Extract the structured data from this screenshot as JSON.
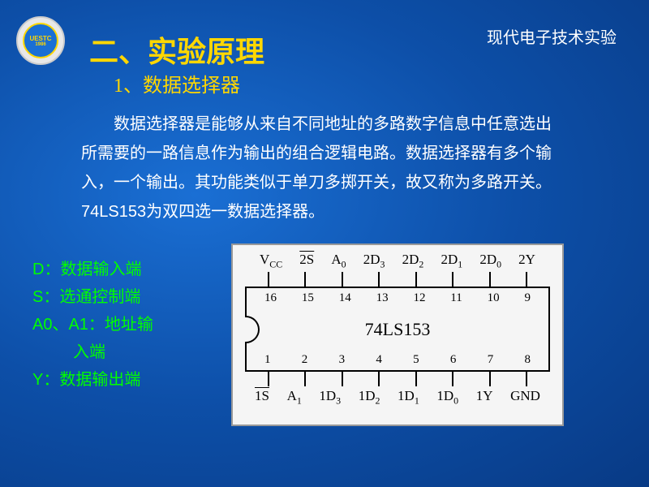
{
  "header": {
    "right_text": "现代电子技术实验",
    "logo_text": "UESTC",
    "logo_year": "1986"
  },
  "title": "二、实验原理",
  "subtitle": "1、数据选择器",
  "body_text": "数据选择器是能够从来自不同地址的多路数字信息中任意选出所需要的一路信息作为输出的组合逻辑电路。数据选择器有多个输入，一个输出。其功能类似于单刀多掷开关，故又称为多路开关。74LS153为双四选一数据选择器。",
  "pin_legend": {
    "d": "D：数据输入端",
    "s": "S：选通控制端",
    "a": "A0、A1：地址输",
    "a_cont": "入端",
    "y": "Y：数据输出端"
  },
  "chip": {
    "name": "74LS153",
    "top_pins": [
      16,
      15,
      14,
      13,
      12,
      11,
      10,
      9
    ],
    "bottom_pins": [
      1,
      2,
      3,
      4,
      5,
      6,
      7,
      8
    ],
    "top_labels_raw": [
      "Vcc",
      "2S",
      "A0",
      "2D3",
      "2D2",
      "2D1",
      "2D0",
      "2Y"
    ],
    "bottom_labels_raw": [
      "1S",
      "A1",
      "1D3",
      "1D2",
      "1D1",
      "1D0",
      "1Y",
      "GND"
    ]
  },
  "colors": {
    "title_color": "#ffd700",
    "body_color": "#ffffff",
    "legend_color": "#00ff00",
    "diagram_bg": "#f5f5f5",
    "diagram_fg": "#000000"
  }
}
